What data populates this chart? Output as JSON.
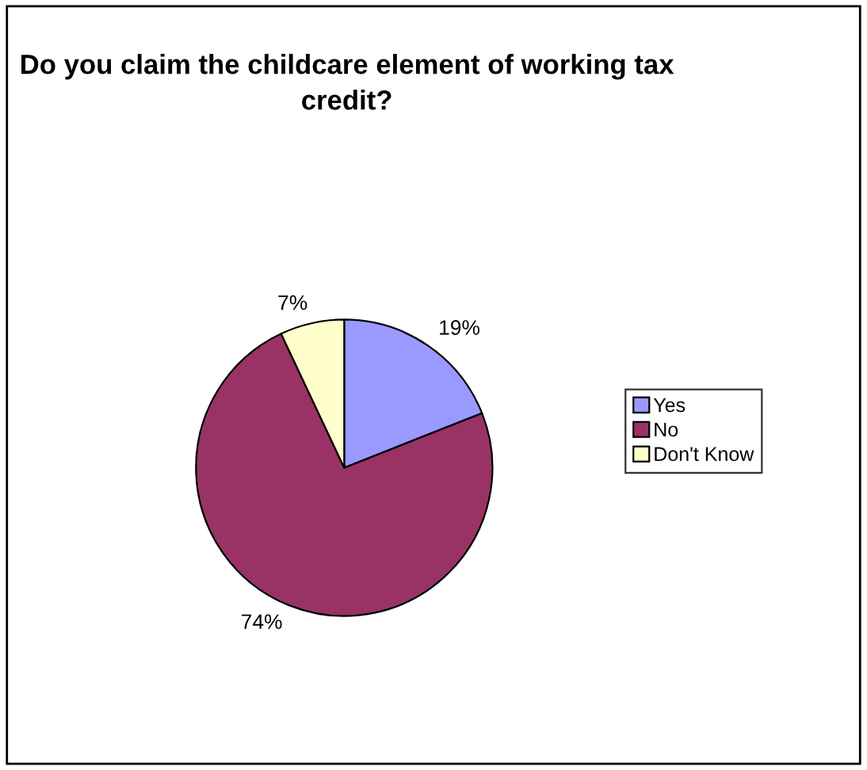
{
  "chart_data": {
    "type": "pie",
    "title": "Do you claim the childcare element of working tax credit?",
    "categories": [
      "Yes",
      "No",
      "Don't Know"
    ],
    "values": [
      19,
      74,
      7
    ],
    "colors": [
      "#9999ff",
      "#993366",
      "#ffffcc"
    ],
    "value_labels": [
      "19%",
      "74%",
      "7%"
    ],
    "legend": "right"
  }
}
